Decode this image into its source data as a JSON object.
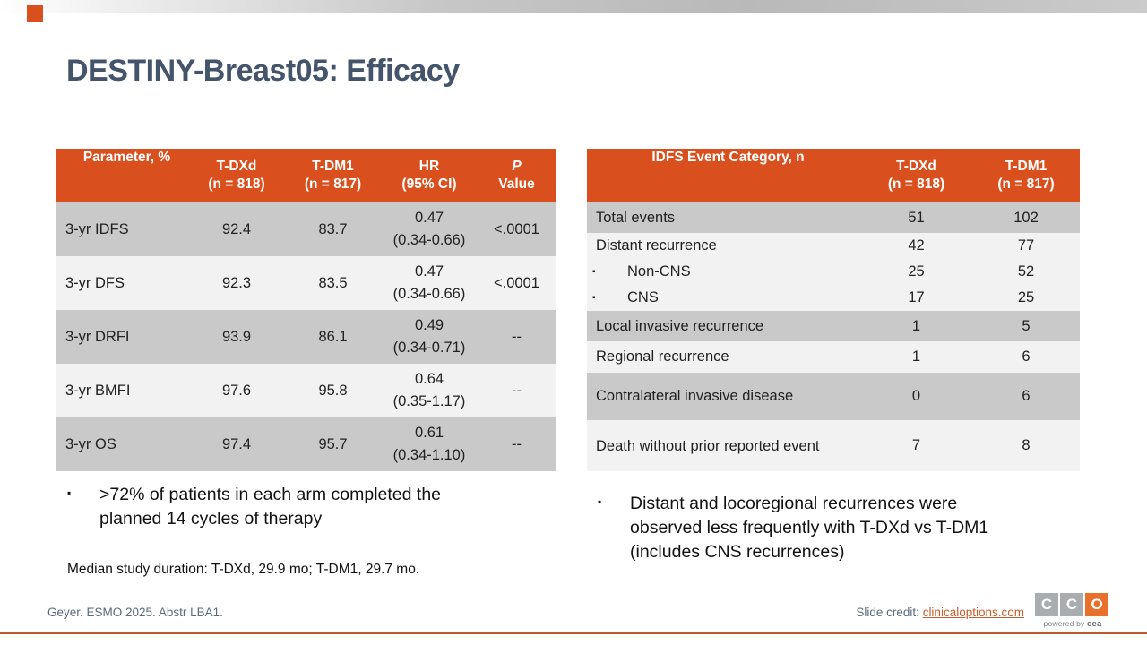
{
  "slide": {
    "title": "DESTINY-Breast05: Efficacy",
    "accent_color": "#D9501E"
  },
  "left_table": {
    "columns": [
      {
        "line1": "Parameter, %",
        "line2": ""
      },
      {
        "line1": "T-DXd",
        "line2": "(n = 818)"
      },
      {
        "line1": "T-DM1",
        "line2": "(n = 817)"
      },
      {
        "line1": "HR",
        "line2": "(95% CI)"
      },
      {
        "line1": "P",
        "line2": "Value"
      }
    ],
    "rows": [
      {
        "param": "3-yr IDFS",
        "tdxd": "92.4",
        "tdm1": "83.7",
        "hr": "0.47",
        "ci": "(0.34-0.66)",
        "p": "<.0001"
      },
      {
        "param": "3-yr DFS",
        "tdxd": "92.3",
        "tdm1": "83.5",
        "hr": "0.47",
        "ci": "(0.34-0.66)",
        "p": "<.0001"
      },
      {
        "param": "3-yr DRFI",
        "tdxd": "93.9",
        "tdm1": "86.1",
        "hr": "0.49",
        "ci": "(0.34-0.71)",
        "p": "--"
      },
      {
        "param": "3-yr BMFI",
        "tdxd": "97.6",
        "tdm1": "95.8",
        "hr": "0.64",
        "ci": "(0.35-1.17)",
        "p": "--"
      },
      {
        "param": "3-yr OS",
        "tdxd": "97.4",
        "tdm1": "95.7",
        "hr": "0.61",
        "ci": "(0.34-1.10)",
        "p": "--"
      }
    ]
  },
  "right_table": {
    "columns": [
      {
        "line1": "IDFS Event Category, n",
        "line2": ""
      },
      {
        "line1": "T-DXd",
        "line2": "(n = 818)"
      },
      {
        "line1": "T-DM1",
        "line2": "(n = 817)"
      }
    ],
    "rows": [
      {
        "category": "Total events",
        "tdxd": "51",
        "tdm1": "102"
      },
      {
        "category": "Distant recurrence",
        "tdxd": "42",
        "tdm1": "77",
        "sub": [
          {
            "category": "Non-CNS",
            "tdxd": "25",
            "tdm1": "52"
          },
          {
            "category": "CNS",
            "tdxd": "17",
            "tdm1": "25"
          }
        ]
      },
      {
        "category": "Local invasive recurrence",
        "tdxd": "1",
        "tdm1": "5"
      },
      {
        "category": "Regional recurrence",
        "tdxd": "1",
        "tdm1": "6"
      },
      {
        "category": "Contralateral invasive disease",
        "tdxd": "0",
        "tdm1": "6"
      },
      {
        "category": "Death without prior reported event",
        "tdxd": "7",
        "tdm1": "8"
      }
    ]
  },
  "bullets": {
    "marker": "▪",
    "left": ">72% of patients in each arm completed the planned 14 cycles of therapy",
    "right": "Distant and locoregional recurrences were observed less frequently with T-DXd vs T-DM1 (includes CNS recurrences)"
  },
  "notes": {
    "median": "Median study duration: T-DXd, 29.9 mo; T-DM1, 29.7 mo."
  },
  "footer": {
    "reference": "Geyer. ESMO 2025. Abstr LBA1.",
    "credit_label": "Slide credit: ",
    "credit_link": "clinicaloptions.com",
    "logo": {
      "letters": [
        "C",
        "C",
        "O"
      ],
      "powered_prefix": "powered by ",
      "powered_brand": "cea",
      "gray_color": "#A9ADB0",
      "orange_color": "#E8702A"
    }
  }
}
